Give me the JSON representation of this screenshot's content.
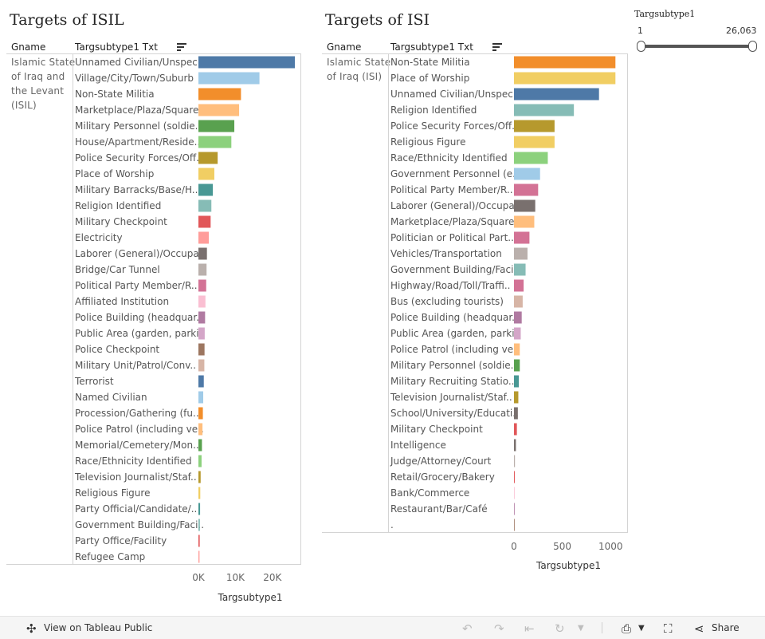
{
  "panels": [
    {
      "title": "Targets of ISIL",
      "col_gname": "Gname",
      "col_type": "Targsubtype1 Txt",
      "gname_lines": [
        "Islamic State",
        "of Iraq and",
        "the Levant",
        "(ISIL)"
      ],
      "axis_title": "Targsubtype1"
    },
    {
      "title": "Targets of ISI",
      "col_gname": "Gname",
      "col_type": "Targsubtype1 Txt",
      "gname_lines": [
        "Islamic State",
        "of Iraq (ISI)"
      ],
      "axis_title": "Targsubtype1"
    }
  ],
  "filter": {
    "title": "Targsubtype1",
    "min_label": "1",
    "max_label": "26,063"
  },
  "footer": {
    "view_label": "View on Tableau Public",
    "share_label": "Share"
  },
  "icons": [
    "tableau-logo-icon",
    "undo-icon",
    "redo-icon",
    "revert-icon",
    "refresh-icon",
    "download-icon",
    "fullscreen-icon",
    "share-icon",
    "sort-icon"
  ],
  "chart_data": [
    {
      "type": "bar",
      "orientation": "horizontal",
      "title": "Targets of ISIL",
      "xlabel": "Targsubtype1",
      "xlim": [
        0,
        28000
      ],
      "ticks": [
        0,
        10000,
        20000
      ],
      "tick_labels": [
        "0K",
        "10K",
        "20K"
      ],
      "categories": [
        "Unnamed Civilian/Unspeci..",
        "Village/City/Town/Suburb",
        "Non-State Militia",
        "Marketplace/Plaza/Square",
        "Military Personnel (soldie..",
        "House/Apartment/Reside..",
        "Police Security Forces/Off..",
        "Place of Worship",
        "Military Barracks/Base/H..",
        "Religion Identified",
        "Military Checkpoint",
        "Electricity",
        "Laborer (General)/Occupa..",
        "Bridge/Car Tunnel",
        "Political Party Member/R..",
        "Affiliated Institution",
        "Police Building (headquar..",
        "Public Area (garden, parki..",
        "Police Checkpoint",
        "Military Unit/Patrol/Conv..",
        "Terrorist",
        "Named Civilian",
        "Procession/Gathering (fu..",
        "Police Patrol (including ve..",
        "Memorial/Cemetery/Mon..",
        "Race/Ethnicity Identified",
        "Television Journalist/Staf..",
        "Religious Figure",
        "Party Official/Candidate/..",
        "Government Building/Faci..",
        "Party Office/Facility",
        "Refugee Camp"
      ],
      "values": [
        26063,
        16500,
        11500,
        11000,
        9700,
        8900,
        5200,
        4300,
        3900,
        3500,
        3300,
        2800,
        2300,
        2200,
        2100,
        1900,
        1800,
        1700,
        1650,
        1600,
        1450,
        1300,
        1200,
        1100,
        950,
        850,
        600,
        500,
        450,
        400,
        350,
        300
      ],
      "colors": [
        "#4e79a7",
        "#a0cbe8",
        "#f28e2b",
        "#ffbe7d",
        "#59a14f",
        "#8cd17d",
        "#b6992d",
        "#f1ce63",
        "#499894",
        "#86bcb6",
        "#e15759",
        "#ff9d9a",
        "#79706e",
        "#bab0ac",
        "#d37295",
        "#fabfd2",
        "#b07aa1",
        "#d4a6c8",
        "#9d7660",
        "#d7b5a6",
        "#4e79a7",
        "#a0cbe8",
        "#f28e2b",
        "#ffbe7d",
        "#59a14f",
        "#8cd17d",
        "#b6992d",
        "#f1ce63",
        "#499894",
        "#86bcb6",
        "#e15759",
        "#ff9d9a"
      ]
    },
    {
      "type": "bar",
      "orientation": "horizontal",
      "title": "Targets of ISI",
      "xlabel": "Targsubtype1",
      "xlim": [
        0,
        1130
      ],
      "ticks": [
        0,
        500,
        1000
      ],
      "tick_labels": [
        "0",
        "500",
        "1000"
      ],
      "categories": [
        "Non-State Militia",
        "Place of Worship",
        "Unnamed Civilian/Unspeci..",
        "Religion Identified",
        "Police Security Forces/Off..",
        "Religious Figure",
        "Race/Ethnicity Identified",
        "Government Personnel (e..",
        "Political Party Member/R..",
        "Laborer (General)/Occupa..",
        "Marketplace/Plaza/Square",
        "Politician or Political Part..",
        "Vehicles/Transportation",
        "Government Building/Faci..",
        "Highway/Road/Toll/Traffi..",
        "Bus (excluding tourists)",
        "Police Building (headquar..",
        "Public Area (garden, parki..",
        "Police Patrol (including ve..",
        "Military Personnel (soldie..",
        "Military Recruiting Statio..",
        "Television Journalist/Staf..",
        "School/University/Educati..",
        "Military Checkpoint",
        "Intelligence",
        "Judge/Attorney/Court",
        "Retail/Grocery/Bakery",
        "Bank/Commerce",
        "Restaurant/Bar/Café",
        "."
      ],
      "values": [
        1050,
        1050,
        880,
        620,
        420,
        420,
        350,
        270,
        250,
        220,
        210,
        160,
        140,
        120,
        100,
        90,
        80,
        70,
        60,
        60,
        50,
        45,
        40,
        30,
        20,
        10,
        8,
        3,
        2,
        1
      ],
      "colors": [
        "#f28e2b",
        "#f1ce63",
        "#4e79a7",
        "#86bcb6",
        "#b6992d",
        "#f1ce63",
        "#8cd17d",
        "#a0cbe8",
        "#d37295",
        "#79706e",
        "#ffbe7d",
        "#d37295",
        "#bab0ac",
        "#86bcb6",
        "#d37295",
        "#d7b5a6",
        "#b07aa1",
        "#d4a6c8",
        "#ffbe7d",
        "#59a14f",
        "#499894",
        "#b6992d",
        "#79706e",
        "#e15759",
        "#79706e",
        "#bab0ac",
        "#e15759",
        "#fabfd2",
        "#b07aa1",
        "#9d7660"
      ]
    }
  ]
}
